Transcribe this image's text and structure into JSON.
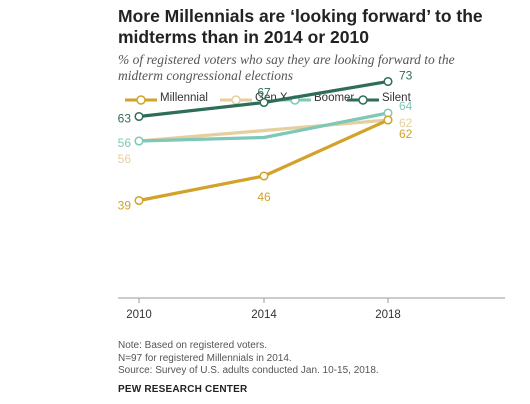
{
  "title": "More Millennials are ‘looking forward’ to the midterms than in 2014 or 2010",
  "subtitle": "% of registered voters who say they are looking forward to the midterm congressional elections",
  "notes": [
    "Note: Based on registered voters.",
    "N=97 for registered Millennials in 2014.",
    "Source: Survey of U.S. adults conducted Jan. 10-15, 2018."
  ],
  "source_brand": "PEW RESEARCH CENTER",
  "chart_data": {
    "type": "line",
    "title": "More Millennials are ‘looking forward’ to the midterms than in 2014 or 2010",
    "subtitle": "% of registered voters who say they are looking forward to the midterm congressional elections",
    "x": [
      "2010",
      "2014",
      "2018"
    ],
    "xlabel": "",
    "ylabel": "",
    "ylim": [
      30,
      80
    ],
    "grid": false,
    "legend": "top",
    "series": [
      {
        "name": "Millennial",
        "values": [
          39,
          46,
          62
        ],
        "color": "#D2A22A"
      },
      {
        "name": "Gen X",
        "values": [
          56,
          null,
          62
        ],
        "color": "#E6CF9E"
      },
      {
        "name": "Boomer",
        "values": [
          56,
          null,
          64
        ],
        "color": "#7EC8B9"
      },
      {
        "name": "Silent",
        "values": [
          63,
          67,
          73
        ],
        "color": "#2E6E58"
      }
    ],
    "hidden_points": [
      {
        "series": "Gen X",
        "x": "2014",
        "value": 59
      },
      {
        "series": "Boomer",
        "x": "2014",
        "value": 57
      }
    ]
  }
}
